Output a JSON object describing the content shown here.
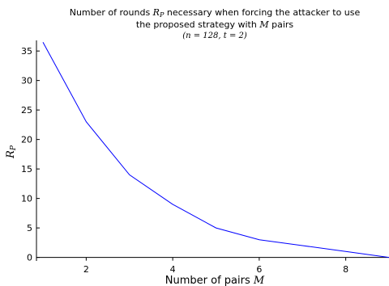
{
  "chart_data": {
    "type": "line",
    "title_lines": [
      "Number of rounds R_P necessary when forcing the attacker to use",
      "the proposed strategy with M pairs"
    ],
    "subtitle": "(n = 128, t = 2)",
    "xlabel": "Number of pairs M",
    "ylabel": "R_P",
    "xlim": [
      0.85,
      9.0
    ],
    "ylim": [
      -0.6,
      36.8
    ],
    "x_ticks": [
      2,
      4,
      6,
      8
    ],
    "y_ticks": [
      0,
      5,
      10,
      15,
      20,
      25,
      30,
      35
    ],
    "grid": false,
    "series": [
      {
        "color": "#0000ff",
        "x": [
          1,
          2,
          3,
          4,
          5,
          6,
          7,
          8,
          9
        ],
        "y": [
          36.5,
          23,
          14,
          9,
          5,
          3,
          2,
          1,
          0
        ]
      }
    ]
  }
}
